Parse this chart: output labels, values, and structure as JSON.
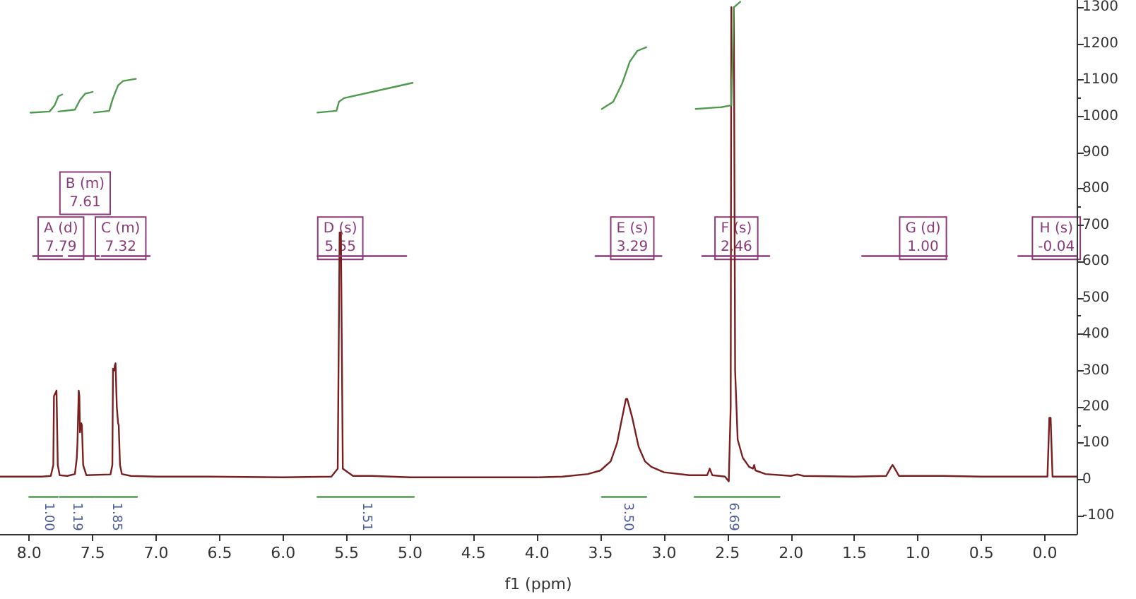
{
  "chart_data": {
    "type": "line",
    "xlabel": "f1 (ppm)",
    "xlim": [
      8.23,
      -0.25
    ],
    "ylim": [
      -150,
      1320
    ],
    "xticks": [
      {
        "value": 8,
        "label": "8.0"
      },
      7.5,
      {
        "value": 7,
        "label": "7.0"
      },
      6.5,
      {
        "value": 6,
        "label": "6.0"
      },
      5.5,
      {
        "value": 5,
        "label": "5.0"
      },
      4.5,
      {
        "value": 4,
        "label": "4.0"
      },
      3.5,
      {
        "value": 3,
        "label": "3.0"
      },
      2.5,
      {
        "value": 2,
        "label": "2.0"
      },
      1.5,
      {
        "value": 1,
        "label": "1.0"
      },
      0.5,
      {
        "value": 0,
        "label": "0.0"
      }
    ],
    "yticks": [
      -100,
      0,
      100,
      200,
      300,
      400,
      500,
      600,
      700,
      800,
      900,
      1000,
      1100,
      1200,
      1300
    ],
    "grid": false,
    "marker": "none",
    "line_style": "solid",
    "series": [
      {
        "color": "#7a1f1f",
        "x": [
          8.23,
          7.9,
          7.83,
          7.81,
          7.805,
          7.79,
          7.785,
          7.775,
          7.76,
          7.7,
          7.64,
          7.625,
          7.62,
          7.61,
          7.605,
          7.6,
          7.59,
          7.585,
          7.575,
          7.55,
          7.36,
          7.345,
          7.34,
          7.33,
          7.325,
          7.32,
          7.31,
          7.3,
          7.295,
          7.285,
          7.27,
          7.2,
          7.0,
          6.6,
          6.0,
          5.62,
          5.57,
          5.555,
          5.545,
          5.53,
          5.45,
          5.3,
          5.0,
          4.5,
          4.0,
          3.8,
          3.6,
          3.5,
          3.42,
          3.37,
          3.33,
          3.3,
          3.29,
          3.25,
          3.2,
          3.15,
          3.1,
          3.0,
          2.8,
          2.66,
          2.64,
          2.62,
          2.52,
          2.49,
          2.475,
          2.47,
          2.465,
          2.455,
          2.45,
          2.44,
          2.42,
          2.38,
          2.33,
          2.3,
          2.29,
          2.28,
          2.2,
          2.0,
          1.95,
          1.9,
          1.5,
          1.25,
          1.21,
          1.2,
          1.19,
          1.15,
          0.8,
          0.5,
          0.05,
          -0.02,
          -0.035,
          -0.045,
          -0.06,
          -0.2,
          -0.25
        ],
        "values": [
          8,
          8,
          10,
          40,
          230,
          240,
          245,
          40,
          12,
          10,
          15,
          60,
          100,
          245,
          230,
          130,
          155,
          150,
          40,
          12,
          14,
          40,
          305,
          300,
          315,
          320,
          200,
          155,
          150,
          40,
          15,
          10,
          8,
          8,
          6,
          8,
          30,
          680,
          680,
          30,
          10,
          10,
          6,
          6,
          6,
          8,
          15,
          25,
          50,
          100,
          170,
          222,
          222,
          170,
          90,
          50,
          35,
          20,
          12,
          12,
          30,
          12,
          8,
          -5,
          200,
          1300,
          null,
          null,
          1300,
          300,
          110,
          60,
          35,
          30,
          40,
          25,
          15,
          10,
          14,
          10,
          8,
          10,
          35,
          40,
          35,
          10,
          10,
          8,
          8,
          8,
          170,
          170,
          8,
          8,
          8
        ]
      },
      {
        "color": "#4e9a4e",
        "x": [
          7.99,
          7.84,
          7.8,
          7.77,
          7.74
        ],
        "values": [
          1010,
          1013,
          1030,
          1055,
          1060
        ]
      },
      {
        "color": "#4e9a4e",
        "x": [
          7.77,
          7.64,
          7.6,
          7.56,
          7.5
        ],
        "values": [
          1013,
          1018,
          1045,
          1062,
          1067
        ]
      },
      {
        "color": "#4e9a4e",
        "x": [
          7.49,
          7.37,
          7.34,
          7.3,
          7.26,
          7.16
        ],
        "values": [
          1010,
          1015,
          1050,
          1085,
          1097,
          1103
        ]
      },
      {
        "color": "#4e9a4e",
        "x": [
          5.73,
          5.58,
          5.56,
          5.52,
          4.98
        ],
        "values": [
          1010,
          1015,
          1040,
          1050,
          1092
        ]
      },
      {
        "color": "#4e9a4e",
        "x": [
          3.49,
          3.4,
          3.33,
          3.27,
          3.21,
          3.14
        ],
        "values": [
          1020,
          1040,
          1090,
          1150,
          1180,
          1190
        ]
      },
      {
        "color": "#4e9a4e",
        "x": [
          2.75,
          2.55,
          2.47,
          2.46,
          2.45,
          2.4
        ],
        "values": [
          1020,
          1025,
          1030,
          1150,
          1300,
          1315
        ]
      },
      {
        "color": "#8b3a7a",
        "x": [
          7.97,
          7.74,
          7.715,
          7.69,
          7.45,
          7.44,
          7.43,
          7.05
        ],
        "values": [
          615,
          615,
          null,
          615,
          615,
          null,
          615,
          615
        ]
      },
      {
        "color": "#8b3a7a",
        "x": [
          5.73,
          5.03
        ],
        "values": [
          615,
          615
        ]
      },
      {
        "color": "#8b3a7a",
        "x": [
          3.54,
          3.02
        ],
        "values": [
          615,
          615
        ]
      },
      {
        "color": "#8b3a7a",
        "x": [
          2.7,
          2.17
        ],
        "values": [
          615,
          615
        ]
      },
      {
        "color": "#8b3a7a",
        "x": [
          1.44,
          0.77
        ],
        "values": [
          615,
          615
        ]
      },
      {
        "color": "#8b3a7a",
        "x": [
          0.21,
          -0.25
        ],
        "values": [
          615,
          615
        ]
      },
      {
        "color": "#4e9a4e",
        "x": [
          8.0,
          7.775,
          7.77,
          7.76,
          7.49,
          7.485,
          7.48,
          7.15
        ],
        "values": [
          -48,
          -48,
          null,
          -48,
          -48,
          null,
          -48,
          -48
        ]
      },
      {
        "color": "#4e9a4e",
        "x": [
          5.73,
          4.97
        ],
        "values": [
          -48,
          -48
        ]
      },
      {
        "color": "#4e9a4e",
        "x": [
          3.49,
          3.14
        ],
        "values": [
          -48,
          -48
        ]
      },
      {
        "color": "#4e9a4e",
        "x": [
          2.76,
          2.09
        ],
        "values": [
          -48,
          -48
        ]
      }
    ],
    "annotations": [
      {
        "text": "A (d)\n7.79",
        "x": 7.75,
        "y": 664
      },
      {
        "text": "B (m)\n7.61",
        "x": 7.56,
        "y": 788
      },
      {
        "text": "C (m)\n7.32",
        "x": 7.28,
        "y": 664
      },
      {
        "text": "D (s)\n5.55",
        "x": 5.55,
        "y": 664
      },
      {
        "text": "E (s)\n3.29",
        "x": 3.25,
        "y": 664
      },
      {
        "text": "F (s)\n2.46",
        "x": 2.43,
        "y": 664
      },
      {
        "text": "G (d)\n1.00",
        "x": 0.96,
        "y": 664
      },
      {
        "text": "H (s)\n-0.04",
        "x": -0.09,
        "y": 664
      },
      {
        "text": "1.00",
        "x": 7.85,
        "y": -48
      },
      {
        "text": "1.19",
        "x": 7.63,
        "y": -48
      },
      {
        "text": "1.85",
        "x": 7.32,
        "y": -48
      },
      {
        "text": "1.51",
        "x": 5.35,
        "y": -48
      },
      {
        "text": "3.50",
        "x": 3.29,
        "y": -48
      },
      {
        "text": "6.69",
        "x": 2.46,
        "y": -48
      }
    ]
  }
}
